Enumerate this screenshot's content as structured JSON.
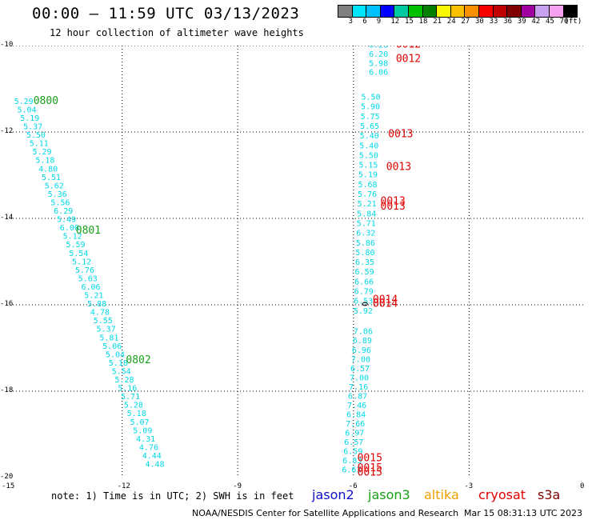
{
  "title": "00:00 – 11:59 UTC 03/13/2023",
  "subtitle": "12 hour collection of altimeter wave heights",
  "note": "note: 1) Time is in UTC; 2) SWH is in feet",
  "credit": "NOAA/NESDIS Center for Satellite Applications and Research",
  "timestamp": "Mar 15 08:31:13 UTC 2023",
  "missions": [
    {
      "name": "jason2",
      "color": "#1010c8"
    },
    {
      "name": "jason3",
      "color": "#18a018"
    },
    {
      "name": "altika",
      "color": "#f0a000"
    },
    {
      "name": "cryosat",
      "color": "#e00000"
    },
    {
      "name": "s3a",
      "color": "#800000"
    }
  ],
  "legend": {
    "unit": "(ft)",
    "bins": [
      {
        "label": "3",
        "color": "#808080"
      },
      {
        "label": "6",
        "color": "#00e5ff"
      },
      {
        "label": "9",
        "color": "#00c0ff"
      },
      {
        "label": "12",
        "color": "#0000ff"
      },
      {
        "label": "15",
        "color": "#00c8a0"
      },
      {
        "label": "18",
        "color": "#00c000"
      },
      {
        "label": "21",
        "color": "#008000"
      },
      {
        "label": "24",
        "color": "#f8f800"
      },
      {
        "label": "27",
        "color": "#f8c000"
      },
      {
        "label": "30",
        "color": "#f89000"
      },
      {
        "label": "33",
        "color": "#f80000"
      },
      {
        "label": "36",
        "color": "#c00000"
      },
      {
        "label": "39",
        "color": "#800000"
      },
      {
        "label": "42",
        "color": "#a000a0"
      },
      {
        "label": "45",
        "color": "#c8a0f0"
      },
      {
        "label": "70",
        "color": "#f8a0f0"
      },
      {
        "label": "",
        "color": "#000000"
      }
    ]
  },
  "axes": {
    "x_ticks": [
      "-15",
      "-12",
      "-9",
      "-6",
      "-3",
      "0"
    ],
    "y_ticks": [
      "-10",
      "-12",
      "-14",
      "-16",
      "-18",
      "-20"
    ],
    "xlim": [
      -15,
      0
    ],
    "ylim": [
      -20,
      -10
    ]
  },
  "chart_data": {
    "type": "scatter",
    "swh_color": "#00d8e8",
    "track1": {
      "swh": [
        "5.29",
        "5.04",
        "5.19",
        "5.37",
        "5.50",
        "5.11",
        "5.29",
        "5.18",
        "4.80",
        "5.51",
        "5.62",
        "5.36",
        "5.56",
        "6.29",
        "5.49",
        "6.00",
        "5.12",
        "5.59",
        "5.54",
        "5.12",
        "5.76",
        "5.63",
        "6.06",
        "5.21",
        "5.88",
        "4.78",
        "5.55",
        "5.37",
        "5.81",
        "5.06",
        "5.04",
        "5.18",
        "5.54",
        "5.28",
        "5.16",
        "5.71",
        "5.28",
        "5.18",
        "5.07",
        "5.09",
        "4.31",
        "4.76",
        "4.44",
        "4.48"
      ],
      "lon_start": -14.8,
      "lat_start": -11.35,
      "lon_end": -11.4,
      "lat_end": -19.75
    },
    "track2_upper": {
      "swh": [
        "6.23",
        "6.20",
        "5.98",
        "6.06"
      ],
      "lon": -5.6,
      "lat_start": -10.05,
      "lat_end": -10.68
    },
    "track2_mid": {
      "swh": [
        "5.50",
        "5.90",
        "5.75",
        "5.65",
        "5.40",
        "5.40",
        "5.50",
        "5.15",
        "5.19",
        "5.68",
        "5.76",
        "5.21",
        "5.84",
        "5.71",
        "6.32",
        "5.86",
        "5.80",
        "6.35",
        "6.59",
        "6.66",
        "6.79",
        "6.53",
        "5.92"
      ],
      "lon_start": -5.8,
      "lat_start": -11.25,
      "lon_end": -6.0,
      "lat_end": -16.2
    },
    "track2_lower": {
      "swh": [
        "7.06",
        "6.89",
        "6.96",
        "7.00",
        "6.57",
        "7.00",
        "7.16",
        "6.87",
        "7.46",
        "6.84",
        "7.66",
        "6.97",
        "6.57",
        "6.59",
        "6.83",
        "6.63"
      ],
      "lon_start": -6.0,
      "lat_start": -16.68,
      "lon_end": -6.3,
      "lat_end": -19.88
    },
    "time_labels": [
      {
        "text": "0800",
        "lon": -14.3,
        "lat": -11.35,
        "mission": "jason3"
      },
      {
        "text": "0801",
        "lon": -13.2,
        "lat": -14.35,
        "mission": "jason3"
      },
      {
        "text": "0802",
        "lon": -11.9,
        "lat": -17.35,
        "mission": "jason3"
      },
      {
        "text": "0012",
        "lon": -4.9,
        "lat": -10.05,
        "mission": "cryosat"
      },
      {
        "text": "0012",
        "lon": -4.9,
        "lat": -10.38,
        "mission": "cryosat"
      },
      {
        "text": "0013",
        "lon": -5.1,
        "lat": -12.12,
        "mission": "cryosat"
      },
      {
        "text": "0013",
        "lon": -5.15,
        "lat": -12.88,
        "mission": "cryosat"
      },
      {
        "text": "0013",
        "lon": -5.3,
        "lat": -13.68,
        "mission": "cryosat"
      },
      {
        "text": "0013",
        "lon": -5.3,
        "lat": -13.8,
        "mission": "cryosat"
      },
      {
        "text": "0014",
        "lon": -5.5,
        "lat": -15.95,
        "mission": "cryosat"
      },
      {
        "text": "0014",
        "lon": -5.5,
        "lat": -16.05,
        "mission": "cryosat"
      },
      {
        "text": "0015",
        "lon": -5.9,
        "lat": -19.62,
        "mission": "cryosat"
      },
      {
        "text": "0015",
        "lon": -5.9,
        "lat": -19.85,
        "mission": "cryosat"
      },
      {
        "text": "0015",
        "lon": -5.9,
        "lat": -19.95,
        "mission": "cryosat"
      }
    ],
    "island": {
      "lon": -5.7,
      "lat": -15.98
    }
  }
}
